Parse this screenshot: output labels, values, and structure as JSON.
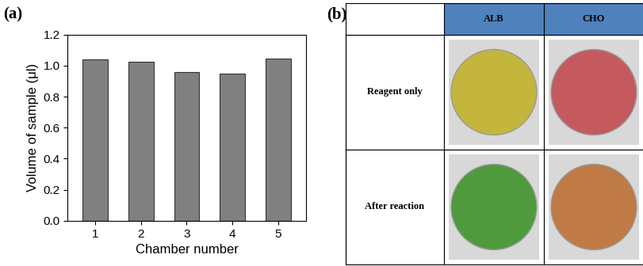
{
  "chart_data": {
    "type": "bar",
    "panel_label": "(a)",
    "x_label": "Chamber number",
    "y_label": "Volume of sample (μl)",
    "categories": [
      "1",
      "2",
      "3",
      "4",
      "5"
    ],
    "values": [
      1.04,
      1.025,
      0.96,
      0.95,
      1.045
    ],
    "color": "#808080",
    "ylim": [
      0,
      1.2
    ],
    "yticks": [
      {
        "value": 0,
        "label": "0.0"
      },
      {
        "value": 0.2,
        "label": "0.2"
      },
      {
        "value": 0.4,
        "label": "0.4"
      },
      {
        "value": 0.6,
        "label": "0.6"
      },
      {
        "value": 0.8,
        "label": "0.8"
      },
      {
        "value": 1.0,
        "label": "1.0"
      },
      {
        "value": 1.2,
        "label": "1.2"
      }
    ],
    "grid": false
  },
  "photo_table": {
    "panel_label": "(b)",
    "columns": [
      "ALB",
      "CHO"
    ],
    "header_color": "#4f81bd",
    "rows": [
      {
        "label": "Reagent only",
        "colors": [
          "#c4b53c",
          "#c45a5e"
        ]
      },
      {
        "label": "After reaction",
        "colors": [
          "#4f9a3c",
          "#c07a45"
        ]
      }
    ]
  }
}
